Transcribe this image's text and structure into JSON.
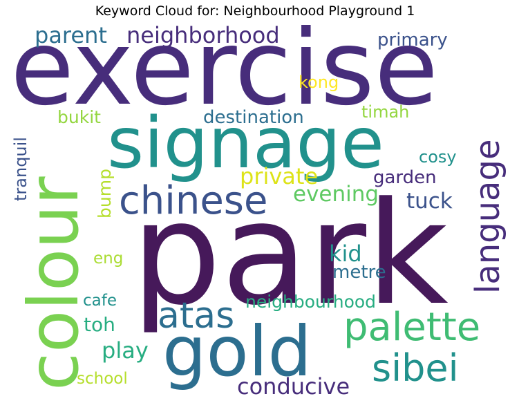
{
  "title": "Keyword Cloud for: Neighbourhood Playground 1",
  "palette": {
    "darkpurple": "#46195a",
    "purple": "#472d7b",
    "indigo": "#3b528b",
    "blue": "#2c6e8f",
    "teal": "#21918c",
    "green": "#27ad81",
    "lightgreen": "#5ec962",
    "lime": "#93d63f",
    "yellowgreen": "#aadc32",
    "yellow": "#dde318"
  },
  "words": [
    {
      "text": "park",
      "color": "#46195a"
    },
    {
      "text": "exercise",
      "color": "#472d7b"
    },
    {
      "text": "signage",
      "color": "#21918c"
    },
    {
      "text": "gold",
      "color": "#2c6e8f"
    },
    {
      "text": "colour",
      "color": "#7ad151"
    },
    {
      "text": "language",
      "color": "#472d7b"
    },
    {
      "text": "chinese",
      "color": "#3b528b"
    },
    {
      "text": "palette",
      "color": "#3fbc73"
    },
    {
      "text": "sibei",
      "color": "#21918c"
    },
    {
      "text": "atas",
      "color": "#2c6e8f"
    },
    {
      "text": "neighborhood",
      "color": "#472d7b"
    },
    {
      "text": "parent",
      "color": "#2c6e8f"
    },
    {
      "text": "conducive",
      "color": "#472d7b"
    },
    {
      "text": "private",
      "color": "#dde318"
    },
    {
      "text": "evening",
      "color": "#5ec962"
    },
    {
      "text": "tuck",
      "color": "#3b528b"
    },
    {
      "text": "kid",
      "color": "#21918c"
    },
    {
      "text": "destination",
      "color": "#2c6e8f"
    },
    {
      "text": "primary",
      "color": "#3b528b"
    },
    {
      "text": "neighbourhood",
      "color": "#27ad81"
    },
    {
      "text": "garden",
      "color": "#472d7b"
    },
    {
      "text": "metre",
      "color": "#2c6e8f"
    },
    {
      "text": "play",
      "color": "#27ad81"
    },
    {
      "text": "toh",
      "color": "#27ad81"
    },
    {
      "text": "school",
      "color": "#b5de2b"
    },
    {
      "text": "cosy",
      "color": "#21918c"
    },
    {
      "text": "timah",
      "color": "#93d63f"
    },
    {
      "text": "kong",
      "color": "#fde725"
    },
    {
      "text": "bukit",
      "color": "#93d63f"
    },
    {
      "text": "cafe",
      "color": "#21918c"
    },
    {
      "text": "eng",
      "color": "#aadc32"
    },
    {
      "text": "bump",
      "color": "#b5de2b"
    },
    {
      "text": "tranquil",
      "color": "#3b528b"
    }
  ]
}
